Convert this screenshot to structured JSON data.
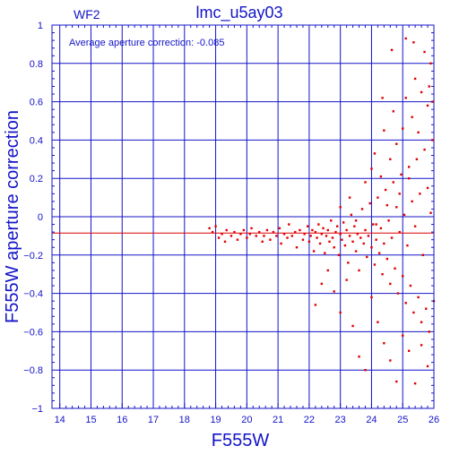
{
  "chart_data": {
    "type": "scatter",
    "title": "lmc_u5ay03",
    "panel_label": "WF2",
    "annotation": "Average aperture correction:  -0.085",
    "xlabel": "F555W",
    "ylabel": "F555W aperture correction",
    "xlim": [
      13.75,
      26
    ],
    "ylim": [
      -1,
      1
    ],
    "x_ticks": [
      14,
      15,
      16,
      17,
      18,
      19,
      20,
      21,
      22,
      23,
      24,
      25,
      26
    ],
    "y_ticks": [
      -1,
      -0.8,
      -0.6,
      -0.4,
      -0.2,
      0,
      0.2,
      0.4,
      0.6,
      0.8,
      1
    ],
    "y_tick_labels": [
      "−1",
      "−0.8",
      "−0.6",
      "−0.4",
      "−0.2",
      "0",
      "0.2",
      "0.4",
      "0.6",
      "0.8",
      "1"
    ],
    "grid": true,
    "legend": "none",
    "reference_line": {
      "y": -0.085,
      "color": "#e00000"
    },
    "colors": {
      "axes": "#1414c8",
      "points": "#e00000",
      "grid": "#1414c8"
    },
    "series": [
      {
        "marker": "square",
        "points": [
          [
            18.8,
            -0.06
          ],
          [
            18.9,
            -0.08
          ],
          [
            19.0,
            -0.05
          ],
          [
            19.1,
            -0.11
          ],
          [
            19.2,
            -0.09
          ],
          [
            19.3,
            -0.13
          ],
          [
            19.35,
            -0.07
          ],
          [
            19.5,
            -0.1
          ],
          [
            19.6,
            -0.08
          ],
          [
            19.7,
            -0.12
          ],
          [
            19.8,
            -0.09
          ],
          [
            19.9,
            -0.07
          ],
          [
            20.0,
            -0.11
          ],
          [
            20.1,
            -0.09
          ],
          [
            20.15,
            -0.06
          ],
          [
            20.3,
            -0.1
          ],
          [
            20.4,
            -0.08
          ],
          [
            20.5,
            -0.13
          ],
          [
            20.55,
            -0.1
          ],
          [
            20.65,
            -0.07
          ],
          [
            20.75,
            -0.12
          ],
          [
            20.85,
            -0.08
          ],
          [
            20.95,
            -0.1
          ],
          [
            21.05,
            -0.06
          ],
          [
            21.1,
            -0.14
          ],
          [
            21.2,
            -0.09
          ],
          [
            21.3,
            -0.11
          ],
          [
            21.35,
            -0.04
          ],
          [
            21.45,
            -0.1
          ],
          [
            21.55,
            -0.08
          ],
          [
            21.6,
            -0.16
          ],
          [
            21.7,
            -0.07
          ],
          [
            21.8,
            -0.12
          ],
          [
            21.85,
            -0.09
          ],
          [
            21.95,
            -0.05
          ],
          [
            22.0,
            -0.13
          ],
          [
            22.05,
            -0.1
          ],
          [
            22.1,
            -0.07
          ],
          [
            22.15,
            -0.18
          ],
          [
            22.2,
            -0.08
          ],
          [
            22.25,
            -0.11
          ],
          [
            22.3,
            -0.04
          ],
          [
            22.35,
            -0.14
          ],
          [
            22.4,
            -0.09
          ],
          [
            22.45,
            -0.06
          ],
          [
            22.5,
            -0.19
          ],
          [
            22.55,
            -0.1
          ],
          [
            22.6,
            -0.07
          ],
          [
            22.65,
            -0.13
          ],
          [
            22.7,
            -0.02
          ],
          [
            22.75,
            -0.11
          ],
          [
            22.8,
            -0.16
          ],
          [
            22.85,
            -0.08
          ],
          [
            22.9,
            -0.05
          ],
          [
            22.95,
            -0.2
          ],
          [
            23.0,
            -0.09
          ],
          [
            23.05,
            -0.12
          ],
          [
            23.1,
            -0.03
          ],
          [
            23.15,
            -0.15
          ],
          [
            23.2,
            -0.07
          ],
          [
            23.25,
            -0.24
          ],
          [
            23.3,
            -0.1
          ],
          [
            23.35,
            0.01
          ],
          [
            23.4,
            -0.13
          ],
          [
            23.45,
            -0.05
          ],
          [
            23.5,
            -0.18
          ],
          [
            23.55,
            -0.09
          ],
          [
            23.6,
            -0.28
          ],
          [
            23.65,
            -0.11
          ],
          [
            23.7,
            0.04
          ],
          [
            23.75,
            -0.14
          ],
          [
            23.8,
            -0.07
          ],
          [
            23.85,
            -0.21
          ],
          [
            23.9,
            -0.1
          ],
          [
            23.95,
            0.07
          ],
          [
            24.0,
            -0.16
          ],
          [
            24.05,
            -0.04
          ],
          [
            24.1,
            -0.25
          ],
          [
            24.15,
            -0.12
          ],
          [
            24.2,
            0.1
          ],
          [
            24.25,
            -0.19
          ],
          [
            24.3,
            -0.06
          ],
          [
            24.35,
            -0.3
          ],
          [
            24.4,
            -0.14
          ],
          [
            24.45,
            0.14
          ],
          [
            24.5,
            -0.22
          ],
          [
            24.55,
            -0.02
          ],
          [
            24.6,
            -0.35
          ],
          [
            24.65,
            -0.11
          ],
          [
            24.7,
            0.18
          ],
          [
            24.75,
            -0.27
          ],
          [
            24.8,
            0.05
          ],
          [
            24.85,
            -0.4
          ],
          [
            24.9,
            -0.08
          ],
          [
            24.95,
            0.22
          ],
          [
            25.0,
            -0.31
          ],
          [
            25.05,
            0.01
          ],
          [
            25.1,
            -0.45
          ],
          [
            25.15,
            -0.15
          ],
          [
            25.2,
            0.26
          ],
          [
            25.25,
            -0.36
          ],
          [
            25.3,
            0.08
          ],
          [
            25.35,
            -0.5
          ],
          [
            25.4,
            -0.05
          ],
          [
            25.45,
            0.3
          ],
          [
            25.5,
            -0.42
          ],
          [
            25.55,
            0.12
          ],
          [
            25.6,
            -0.55
          ],
          [
            25.65,
            -0.2
          ],
          [
            25.7,
            0.35
          ],
          [
            25.75,
            -0.48
          ],
          [
            25.8,
            0.15
          ],
          [
            25.85,
            -0.6
          ],
          [
            25.9,
            0.02
          ],
          [
            25.95,
            0.4
          ],
          [
            22.2,
            -0.46
          ],
          [
            22.4,
            -0.35
          ],
          [
            22.6,
            -0.28
          ],
          [
            22.8,
            -0.39
          ],
          [
            23.0,
            -0.5
          ],
          [
            23.2,
            -0.33
          ],
          [
            23.4,
            -0.57
          ],
          [
            23.6,
            -0.73
          ],
          [
            23.8,
            -0.8
          ],
          [
            24.0,
            -0.42
          ],
          [
            24.2,
            -0.55
          ],
          [
            24.4,
            -0.66
          ],
          [
            24.6,
            -0.75
          ],
          [
            24.8,
            -0.86
          ],
          [
            25.0,
            -0.62
          ],
          [
            25.2,
            -0.7
          ],
          [
            25.4,
            -0.87
          ],
          [
            25.6,
            -0.67
          ],
          [
            25.8,
            -0.78
          ],
          [
            26.0,
            -0.44
          ],
          [
            23.0,
            0.05
          ],
          [
            23.3,
            0.1
          ],
          [
            23.5,
            -0.02
          ],
          [
            23.8,
            0.18
          ],
          [
            24.0,
            0.25
          ],
          [
            24.1,
            0.33
          ],
          [
            24.3,
            0.21
          ],
          [
            24.4,
            0.45
          ],
          [
            24.5,
            0.06
          ],
          [
            24.6,
            0.3
          ],
          [
            24.7,
            0.55
          ],
          [
            24.8,
            0.38
          ],
          [
            24.9,
            0.12
          ],
          [
            25.0,
            0.46
          ],
          [
            25.1,
            0.62
          ],
          [
            25.2,
            0.2
          ],
          [
            25.3,
            0.52
          ],
          [
            25.4,
            0.72
          ],
          [
            25.5,
            0.44
          ],
          [
            25.6,
            0.65
          ],
          [
            25.7,
            0.86
          ],
          [
            25.8,
            0.58
          ],
          [
            25.9,
            0.8
          ],
          [
            25.95,
            0.6
          ],
          [
            24.65,
            0.87
          ],
          [
            25.1,
            0.93
          ],
          [
            25.35,
            0.91
          ],
          [
            25.85,
            0.68
          ],
          [
            24.35,
            0.62
          ],
          [
            24.15,
            -0.04
          ]
        ]
      }
    ]
  }
}
